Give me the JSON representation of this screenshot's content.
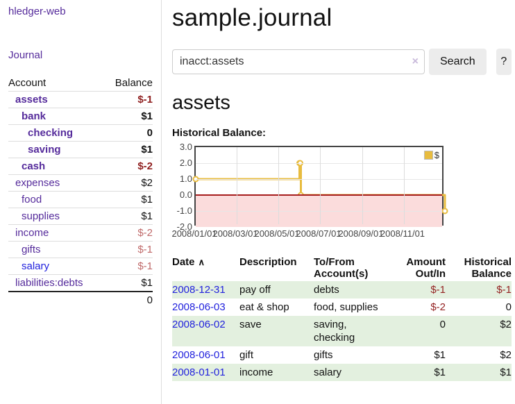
{
  "colors": {
    "purple_link": "#552b9b",
    "blue_link": "#2222dd",
    "negative_strong": "#8f1f1f",
    "negative_soft": "#c06a6a",
    "table_negative": "#942222",
    "row_highlight_green": "#e3f0df",
    "chart_line_gold": "#e8bc3f",
    "chart_negative_fill": "#fbdcdc",
    "chart_zero_line": "#a61c1c",
    "button_bg": "#ececec"
  },
  "sidebar": {
    "brand": "hledger-web",
    "journal_link": "Journal",
    "header": {
      "account": "Account",
      "balance": "Balance"
    },
    "accounts": [
      {
        "name": "assets",
        "indent": 1,
        "bold": true,
        "link": "purple",
        "balance": "$-1",
        "balance_style": "neg-strong"
      },
      {
        "name": "bank",
        "indent": 2,
        "bold": true,
        "link": "purple",
        "balance": "$1",
        "balance_style": ""
      },
      {
        "name": "checking",
        "indent": 3,
        "bold": true,
        "link": "purple",
        "balance": "0",
        "balance_style": ""
      },
      {
        "name": "saving",
        "indent": 3,
        "bold": true,
        "link": "purple",
        "balance": "$1",
        "balance_style": ""
      },
      {
        "name": "cash",
        "indent": 2,
        "bold": true,
        "link": "purple",
        "balance": "$-2",
        "balance_style": "neg-strong"
      },
      {
        "name": "expenses",
        "indent": 1,
        "bold": false,
        "link": "purple",
        "balance": "$2",
        "balance_style": ""
      },
      {
        "name": "food",
        "indent": 2,
        "bold": false,
        "link": "purple",
        "balance": "$1",
        "balance_style": ""
      },
      {
        "name": "supplies",
        "indent": 2,
        "bold": false,
        "link": "purple",
        "balance": "$1",
        "balance_style": ""
      },
      {
        "name": "income",
        "indent": 1,
        "bold": false,
        "link": "purple",
        "balance": "$-2",
        "balance_style": "neg-soft"
      },
      {
        "name": "gifts",
        "indent": 2,
        "bold": false,
        "link": "purple",
        "balance": "$-1",
        "balance_style": "neg-soft"
      },
      {
        "name": "salary",
        "indent": 2,
        "bold": false,
        "link": "blue",
        "balance": "$-1",
        "balance_style": "neg-soft"
      },
      {
        "name": "liabilities:debts",
        "indent": 1,
        "bold": false,
        "link": "purple",
        "balance": "$1",
        "balance_style": ""
      }
    ],
    "total": "0"
  },
  "main": {
    "title": "sample.journal",
    "search": {
      "value": "inacct:assets",
      "clear_icon": "×",
      "search_button": "Search",
      "help_button": "?"
    },
    "account_heading": "assets",
    "chart_heading": "Historical Balance:"
  },
  "chart_data": {
    "type": "line",
    "step": true,
    "title": "Historical Balance",
    "series": [
      {
        "name": "$",
        "points": [
          [
            "2008-01-01",
            1
          ],
          [
            "2008-06-01",
            2
          ],
          [
            "2008-06-02",
            2
          ],
          [
            "2008-06-03",
            0
          ],
          [
            "2008-12-31",
            -1
          ]
        ]
      }
    ],
    "xlim": [
      "2008-01-01",
      "2008-12-31"
    ],
    "ylim": [
      -2,
      3
    ],
    "ytick_labels": [
      "3.0",
      "2.0",
      "1.0",
      "0.0",
      "-1.0",
      "-2.0"
    ],
    "xtick_labels": [
      "2008/01/01",
      "2008/03/01",
      "2008/05/01",
      "2008/07/01",
      "2008/09/01",
      "2008/11/01"
    ],
    "xtick_dates": [
      "2008-01-01",
      "2008-03-01",
      "2008-05-01",
      "2008-07-01",
      "2008-09-01",
      "2008-11-01"
    ],
    "legend": {
      "label": "$",
      "position": "top-right"
    },
    "grid": true
  },
  "table": {
    "headers": [
      {
        "label": "Date",
        "sort_icon": "∧"
      },
      {
        "label": "Description"
      },
      {
        "label": "To/From Account(s)"
      },
      {
        "label": "Amount Out/In"
      },
      {
        "label": "Historical Balance"
      }
    ],
    "rows": [
      {
        "date": "2008-12-31",
        "description": "pay off",
        "accounts": "debts",
        "amount": "$-1",
        "amount_neg": true,
        "balance": "$-1",
        "balance_neg": true,
        "highlight": true
      },
      {
        "date": "2008-06-03",
        "description": "eat & shop",
        "accounts": "food, supplies",
        "amount": "$-2",
        "amount_neg": true,
        "balance": "0",
        "balance_neg": false,
        "highlight": false
      },
      {
        "date": "2008-06-02",
        "description": "save",
        "accounts": "saving,\nchecking",
        "amount": "0",
        "amount_neg": false,
        "balance": "$2",
        "balance_neg": false,
        "highlight": true
      },
      {
        "date": "2008-06-01",
        "description": "gift",
        "accounts": "gifts",
        "amount": "$1",
        "amount_neg": false,
        "balance": "$2",
        "balance_neg": false,
        "highlight": false
      },
      {
        "date": "2008-01-01",
        "description": "income",
        "accounts": "salary",
        "amount": "$1",
        "amount_neg": false,
        "balance": "$1",
        "balance_neg": false,
        "highlight": true
      }
    ]
  }
}
